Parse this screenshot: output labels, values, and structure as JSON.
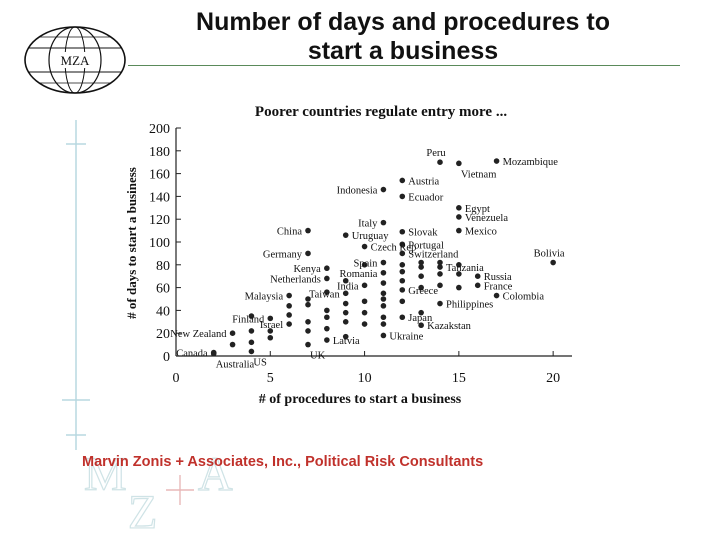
{
  "header": {
    "logo_text": "MZA",
    "title_line1": "Number of days and procedures to",
    "title_line2": "start a business"
  },
  "footer": {
    "company": "Marvin Zonis + Associates, Inc., Political Risk Consultants",
    "watermark_text": "MZA"
  },
  "colors": {
    "title_rule": "#5a8a5a",
    "footer_text": "#c0312b",
    "points": "#222222"
  },
  "chart_data": {
    "type": "scatter",
    "title": "Poorer countries regulate entry more ...",
    "xlabel": "# of procedures to start a business",
    "ylabel": "# of days to start a business",
    "xlim": [
      0,
      21
    ],
    "ylim": [
      0,
      200
    ],
    "xticks": [
      0,
      5,
      10,
      15,
      20
    ],
    "yticks": [
      0,
      20,
      40,
      60,
      80,
      100,
      120,
      140,
      160,
      180,
      200
    ],
    "grid": false,
    "labeled_points": [
      {
        "label": "Peru",
        "x": 14,
        "y": 170
      },
      {
        "label": "Mozambique",
        "x": 17,
        "y": 171
      },
      {
        "label": "Vietnam",
        "x": 15,
        "y": 169
      },
      {
        "label": "Austria",
        "x": 12,
        "y": 154
      },
      {
        "label": "Indonesia",
        "x": 11,
        "y": 146
      },
      {
        "label": "Ecuador",
        "x": 12,
        "y": 140
      },
      {
        "label": "Egypt",
        "x": 15,
        "y": 130
      },
      {
        "label": "Venezuela",
        "x": 15,
        "y": 122
      },
      {
        "label": "Italy",
        "x": 11,
        "y": 117
      },
      {
        "label": "China",
        "x": 7,
        "y": 110
      },
      {
        "label": "Uruguay",
        "x": 9,
        "y": 106
      },
      {
        "label": "Slovak",
        "x": 12,
        "y": 109
      },
      {
        "label": "Mexico",
        "x": 15,
        "y": 110
      },
      {
        "label": "Czech Rep",
        "x": 10,
        "y": 96
      },
      {
        "label": "Portugal",
        "x": 12,
        "y": 98
      },
      {
        "label": "Germany",
        "x": 7,
        "y": 90
      },
      {
        "label": "Switzerland",
        "x": 12,
        "y": 90
      },
      {
        "label": "Bolivia",
        "x": 20,
        "y": 82
      },
      {
        "label": "Spain",
        "x": 11,
        "y": 82
      },
      {
        "label": "Tanzania",
        "x": 14,
        "y": 78
      },
      {
        "label": "Kenya",
        "x": 8,
        "y": 77
      },
      {
        "label": "Romania",
        "x": 11,
        "y": 73
      },
      {
        "label": "Russia",
        "x": 16,
        "y": 70
      },
      {
        "label": "Netherlands",
        "x": 8,
        "y": 68
      },
      {
        "label": "India",
        "x": 10,
        "y": 62
      },
      {
        "label": "France",
        "x": 16,
        "y": 62
      },
      {
        "label": "Greece",
        "x": 12,
        "y": 58
      },
      {
        "label": "Malaysia",
        "x": 6,
        "y": 53
      },
      {
        "label": "Taiwan",
        "x": 9,
        "y": 55
      },
      {
        "label": "Colombia",
        "x": 17,
        "y": 53
      },
      {
        "label": "Philippines",
        "x": 14,
        "y": 46
      },
      {
        "label": "Finland",
        "x": 5,
        "y": 33
      },
      {
        "label": "Japan",
        "x": 12,
        "y": 34
      },
      {
        "label": "Israel",
        "x": 6,
        "y": 28
      },
      {
        "label": "Kazakstan",
        "x": 13,
        "y": 27
      },
      {
        "label": "New Zealand",
        "x": 3,
        "y": 20
      },
      {
        "label": "Ukraine",
        "x": 11,
        "y": 18
      },
      {
        "label": "Latvia",
        "x": 8,
        "y": 14
      },
      {
        "label": "Canada",
        "x": 2,
        "y": 3
      },
      {
        "label": "UK",
        "x": 7,
        "y": 10
      },
      {
        "label": "US",
        "x": 4,
        "y": 4
      },
      {
        "label": "Australia",
        "x": 2,
        "y": 2
      }
    ],
    "unlabeled_points": [
      {
        "x": 3,
        "y": 10
      },
      {
        "x": 4,
        "y": 12
      },
      {
        "x": 4,
        "y": 22
      },
      {
        "x": 4,
        "y": 35
      },
      {
        "x": 5,
        "y": 16
      },
      {
        "x": 5,
        "y": 22
      },
      {
        "x": 6,
        "y": 36
      },
      {
        "x": 6,
        "y": 44
      },
      {
        "x": 7,
        "y": 22
      },
      {
        "x": 7,
        "y": 30
      },
      {
        "x": 7,
        "y": 45
      },
      {
        "x": 7,
        "y": 50
      },
      {
        "x": 8,
        "y": 24
      },
      {
        "x": 8,
        "y": 34
      },
      {
        "x": 8,
        "y": 40
      },
      {
        "x": 8,
        "y": 56
      },
      {
        "x": 9,
        "y": 17
      },
      {
        "x": 9,
        "y": 30
      },
      {
        "x": 9,
        "y": 38
      },
      {
        "x": 9,
        "y": 46
      },
      {
        "x": 9,
        "y": 66
      },
      {
        "x": 10,
        "y": 28
      },
      {
        "x": 10,
        "y": 38
      },
      {
        "x": 10,
        "y": 48
      },
      {
        "x": 10,
        "y": 80
      },
      {
        "x": 11,
        "y": 28
      },
      {
        "x": 11,
        "y": 34
      },
      {
        "x": 11,
        "y": 44
      },
      {
        "x": 11,
        "y": 50
      },
      {
        "x": 11,
        "y": 55
      },
      {
        "x": 11,
        "y": 64
      },
      {
        "x": 12,
        "y": 48
      },
      {
        "x": 12,
        "y": 66
      },
      {
        "x": 12,
        "y": 74
      },
      {
        "x": 12,
        "y": 80
      },
      {
        "x": 13,
        "y": 38
      },
      {
        "x": 13,
        "y": 60
      },
      {
        "x": 13,
        "y": 70
      },
      {
        "x": 13,
        "y": 78
      },
      {
        "x": 13,
        "y": 82
      },
      {
        "x": 14,
        "y": 62
      },
      {
        "x": 14,
        "y": 72
      },
      {
        "x": 14,
        "y": 82
      },
      {
        "x": 15,
        "y": 60
      },
      {
        "x": 15,
        "y": 72
      },
      {
        "x": 15,
        "y": 80
      }
    ]
  }
}
